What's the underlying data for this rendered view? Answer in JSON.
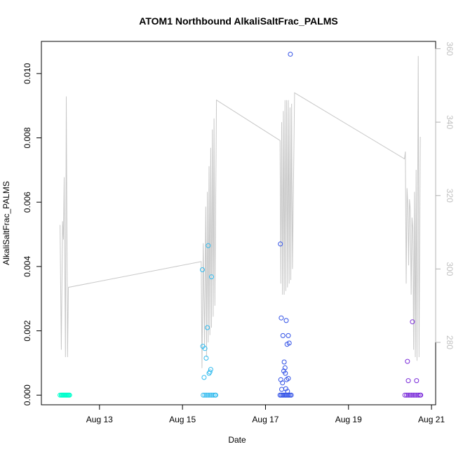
{
  "chart_data": {
    "type": "scatter",
    "title": "ATOM1 Northbound AlkaliSaltFrac_PALMS",
    "xlabel": "Date",
    "ylabel": "AlkaliSaltFrac_PALMS",
    "x_ticks": [
      {
        "day": 13,
        "label": "Aug 13"
      },
      {
        "day": 15,
        "label": "Aug 15"
      },
      {
        "day": 17,
        "label": "Aug 17"
      },
      {
        "day": 19,
        "label": "Aug 19"
      },
      {
        "day": 21,
        "label": "Aug 21"
      }
    ],
    "xlim_days": [
      11.6,
      21.1
    ],
    "ylim": [
      -0.0003,
      0.011
    ],
    "y_ticks": [
      0.0,
      0.002,
      0.004,
      0.006,
      0.008,
      0.01
    ],
    "y_tick_labels": [
      "0.000",
      "0.002",
      "0.004",
      "0.006",
      "0.008",
      "0.010"
    ],
    "y2lim": [
      263,
      362
    ],
    "y2_ticks": [
      280,
      300,
      320,
      340,
      360
    ],
    "y2_tick_labels": [
      "280",
      "300",
      "320",
      "340",
      "360"
    ],
    "grid": false,
    "line_series": {
      "color": "#c8c8c8",
      "points": [
        [
          12.05,
          312
        ],
        [
          12.08,
          278
        ],
        [
          12.11,
          313
        ],
        [
          12.13,
          308
        ],
        [
          12.15,
          325
        ],
        [
          12.18,
          276
        ],
        [
          12.2,
          347
        ],
        [
          12.23,
          276
        ],
        [
          12.25,
          295
        ],
        [
          15.45,
          302
        ],
        [
          15.47,
          273
        ],
        [
          15.5,
          307
        ],
        [
          15.53,
          279
        ],
        [
          15.56,
          317
        ],
        [
          15.58,
          276
        ],
        [
          15.6,
          321
        ],
        [
          15.62,
          280
        ],
        [
          15.64,
          328
        ],
        [
          15.66,
          282
        ],
        [
          15.68,
          333
        ],
        [
          15.7,
          284
        ],
        [
          15.72,
          338
        ],
        [
          15.74,
          287
        ],
        [
          15.76,
          341
        ],
        [
          15.78,
          290
        ],
        [
          15.82,
          346
        ],
        [
          17.35,
          335
        ],
        [
          17.37,
          296
        ],
        [
          17.39,
          340
        ],
        [
          17.41,
          293
        ],
        [
          17.43,
          343
        ],
        [
          17.45,
          293
        ],
        [
          17.47,
          346
        ],
        [
          17.49,
          294
        ],
        [
          17.51,
          346
        ],
        [
          17.53,
          295
        ],
        [
          17.55,
          346
        ],
        [
          17.57,
          296
        ],
        [
          17.59,
          344
        ],
        [
          17.61,
          297
        ],
        [
          17.63,
          345
        ],
        [
          17.65,
          300
        ],
        [
          17.7,
          348
        ],
        [
          20.35,
          330
        ],
        [
          20.37,
          332
        ],
        [
          20.39,
          296
        ],
        [
          20.41,
          322
        ],
        [
          20.43,
          317
        ],
        [
          20.45,
          301
        ],
        [
          20.47,
          319
        ],
        [
          20.49,
          316
        ],
        [
          20.51,
          293
        ],
        [
          20.53,
          314
        ],
        [
          20.55,
          311
        ],
        [
          20.57,
          278
        ],
        [
          20.59,
          321
        ],
        [
          20.61,
          276
        ],
        [
          20.63,
          327
        ],
        [
          20.65,
          275
        ],
        [
          20.68,
          358
        ],
        [
          20.7,
          276
        ],
        [
          20.73,
          336
        ]
      ]
    },
    "series": [
      {
        "color": "#00ffcc",
        "points": [
          [
            12.05,
            0
          ],
          [
            12.08,
            0
          ],
          [
            12.1,
            0
          ],
          [
            12.12,
            0
          ],
          [
            12.14,
            0
          ],
          [
            12.16,
            0
          ],
          [
            12.18,
            0
          ],
          [
            12.2,
            0
          ],
          [
            12.22,
            0
          ],
          [
            12.24,
            0
          ],
          [
            12.26,
            0
          ],
          [
            12.28,
            0
          ]
        ]
      },
      {
        "color": "#33bbee",
        "points": [
          [
            15.48,
            0.0039
          ],
          [
            15.49,
            0.00152
          ],
          [
            15.52,
            0.00055
          ],
          [
            15.54,
            0.00145
          ],
          [
            15.57,
            0.00115
          ],
          [
            15.6,
            0.0021
          ],
          [
            15.62,
            0.00465
          ],
          [
            15.64,
            0.00068
          ],
          [
            15.66,
            0.00072
          ],
          [
            15.68,
            0.0008
          ],
          [
            15.7,
            0.00368
          ],
          [
            15.5,
            0
          ],
          [
            15.54,
            0
          ],
          [
            15.58,
            0
          ],
          [
            15.62,
            0
          ],
          [
            15.66,
            0
          ],
          [
            15.7,
            0
          ],
          [
            15.74,
            0
          ],
          [
            15.78,
            0
          ],
          [
            15.8,
            0
          ]
        ]
      },
      {
        "color": "#2f4fe6",
        "points": [
          [
            17.36,
            0.0047
          ],
          [
            17.38,
            0.0024
          ],
          [
            17.42,
            0.00185
          ],
          [
            17.45,
            0.00103
          ],
          [
            17.47,
            0.00085
          ],
          [
            17.5,
            0.00232
          ],
          [
            17.52,
            0.00158
          ],
          [
            17.55,
            0.00185
          ],
          [
            17.57,
            0.00162
          ],
          [
            17.6,
            0.0106
          ],
          [
            17.37,
            0.00048
          ],
          [
            17.41,
            0.00038
          ],
          [
            17.44,
            0.00075
          ],
          [
            17.48,
            0.00068
          ],
          [
            17.51,
            0.00048
          ],
          [
            17.55,
            0.00052
          ],
          [
            17.39,
            0.00018
          ],
          [
            17.49,
            0.0002
          ],
          [
            17.53,
            0.00012
          ],
          [
            17.35,
            0
          ],
          [
            17.38,
            0
          ],
          [
            17.41,
            0
          ],
          [
            17.44,
            0
          ],
          [
            17.47,
            0
          ],
          [
            17.5,
            0
          ],
          [
            17.53,
            0
          ],
          [
            17.56,
            0
          ],
          [
            17.59,
            0
          ],
          [
            17.62,
            0
          ]
        ]
      },
      {
        "color": "#7a2bd9",
        "points": [
          [
            20.42,
            0.00105
          ],
          [
            20.44,
            0.00045
          ],
          [
            20.54,
            0.00228
          ],
          [
            20.64,
            0.00045
          ],
          [
            20.36,
            0
          ],
          [
            20.4,
            0
          ],
          [
            20.44,
            0
          ],
          [
            20.48,
            0
          ],
          [
            20.52,
            0
          ],
          [
            20.56,
            0
          ],
          [
            20.6,
            0
          ],
          [
            20.64,
            0
          ],
          [
            20.68,
            0
          ],
          [
            20.72,
            0
          ],
          [
            20.74,
            0
          ]
        ]
      }
    ]
  }
}
